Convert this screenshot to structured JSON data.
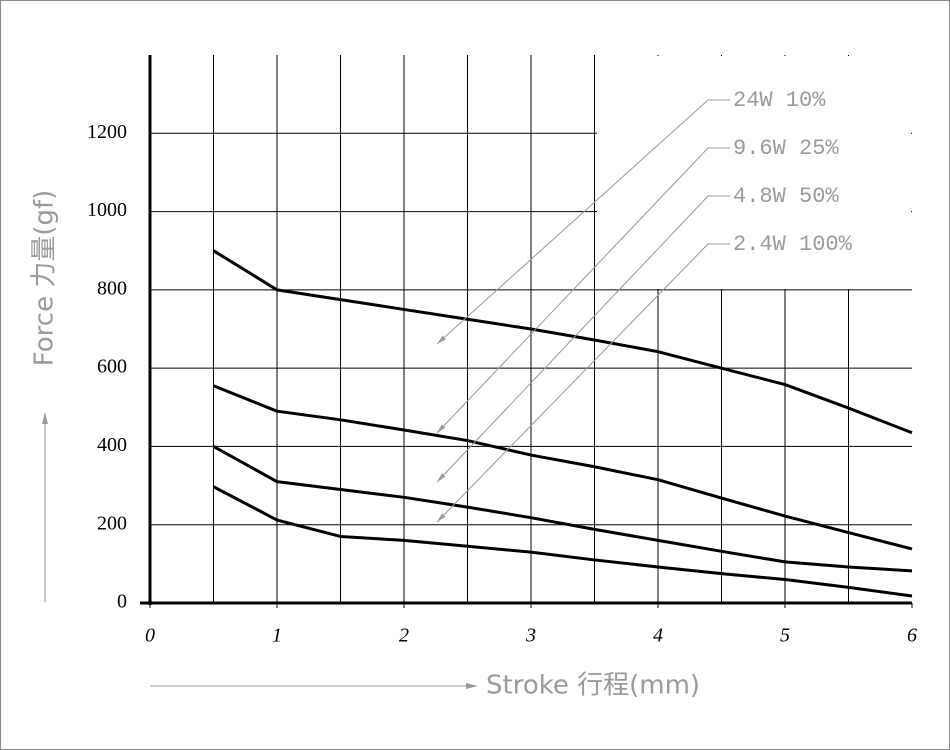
{
  "chart_data": {
    "type": "line",
    "x_label": "Stroke 行程(mm)",
    "y_label": "Force 力量(gf)",
    "x": [
      0.5,
      1,
      1.5,
      2,
      2.5,
      3,
      3.5,
      4,
      4.5,
      5,
      5.5,
      6
    ],
    "series": [
      {
        "name": "24W 10%",
        "color": "#000000",
        "values": [
          900,
          800,
          775,
          750,
          725,
          700,
          672,
          642,
          600,
          558,
          498,
          435
        ]
      },
      {
        "name": "9.6W 25%",
        "color": "#000000",
        "values": [
          555,
          490,
          468,
          442,
          415,
          378,
          348,
          315,
          268,
          222,
          180,
          138
        ]
      },
      {
        "name": "4.8W 50%",
        "color": "#000000",
        "values": [
          400,
          310,
          290,
          270,
          245,
          218,
          188,
          160,
          132,
          105,
          92,
          82
        ]
      },
      {
        "name": "2.4W 100%",
        "color": "#000000",
        "values": [
          297,
          212,
          170,
          160,
          145,
          130,
          110,
          92,
          75,
          60,
          40,
          18
        ]
      }
    ],
    "xlim": [
      0,
      6
    ],
    "xticks": [
      0,
      1,
      2,
      3,
      4,
      5,
      6
    ],
    "ylim": [
      0,
      1400
    ],
    "yticks": [
      0,
      200,
      400,
      600,
      800,
      1000,
      1200
    ],
    "grid": true
  }
}
